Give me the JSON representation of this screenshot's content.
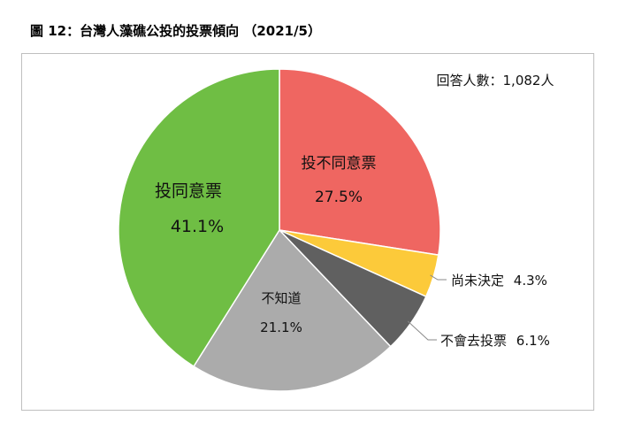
{
  "figure_title": "圖 12：台灣人藻礁公投的投票傾向 （2021/5）",
  "chart_data": {
    "type": "pie",
    "annotation": "回答人數：1,082人",
    "colors": {
      "agree": "#6fbe44",
      "disagree": "#ef6661",
      "undecided": "#fcca3a",
      "will_not_vote": "#606060",
      "dont_know": "#ababab",
      "annotation": "#3b7ddd"
    },
    "slices": [
      {
        "key": "disagree",
        "label": "投不同意票",
        "value": 27.5,
        "value_label": "27.5%"
      },
      {
        "key": "undecided",
        "label": "尚未決定",
        "value": 4.3,
        "value_label": "4.3%"
      },
      {
        "key": "will_not_vote",
        "label": "不會去投票",
        "value": 6.1,
        "value_label": "6.1%"
      },
      {
        "key": "dont_know",
        "label": "不知道",
        "value": 21.1,
        "value_label": "21.1%"
      },
      {
        "key": "agree",
        "label": "投同意票",
        "value": 41.1,
        "value_label": "41.1%"
      }
    ]
  }
}
